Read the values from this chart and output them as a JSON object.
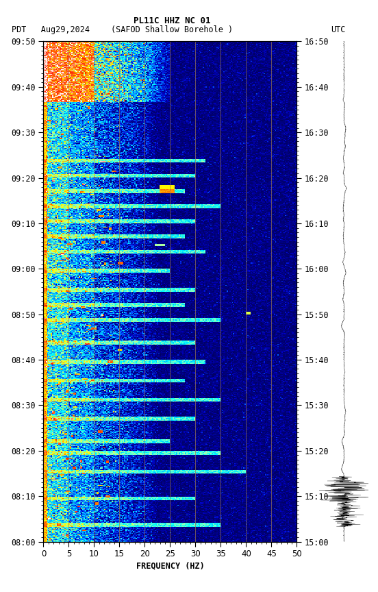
{
  "title_line1": "PL11C HHZ NC 01",
  "title_line2_left": "PDT   Aug29,2024",
  "title_line2_mid": "(SAFOD Shallow Borehole )",
  "title_line2_right": "UTC",
  "xlabel": "FREQUENCY (HZ)",
  "freq_min": 0,
  "freq_max": 50,
  "yticks_pdt": [
    "08:00",
    "08:10",
    "08:20",
    "08:30",
    "08:40",
    "08:50",
    "09:00",
    "09:10",
    "09:20",
    "09:30",
    "09:40",
    "09:50"
  ],
  "yticks_utc": [
    "15:00",
    "15:10",
    "15:20",
    "15:30",
    "15:40",
    "15:50",
    "16:00",
    "16:10",
    "16:20",
    "16:30",
    "16:40",
    "16:50"
  ],
  "xticks": [
    0,
    5,
    10,
    15,
    20,
    25,
    30,
    35,
    40,
    45,
    50
  ],
  "vlines_freq": [
    5,
    10,
    15,
    20,
    25,
    30,
    35,
    40,
    45
  ],
  "fig_bg": "#ffffff",
  "font_color": "#000000",
  "font_size": 8.5,
  "title_font_size": 9,
  "cmap_colors": [
    [
      0.0,
      "#000066"
    ],
    [
      0.1,
      "#0000cc"
    ],
    [
      0.2,
      "#0055ff"
    ],
    [
      0.32,
      "#00aaff"
    ],
    [
      0.44,
      "#00ffff"
    ],
    [
      0.56,
      "#aaffaa"
    ],
    [
      0.66,
      "#ffff00"
    ],
    [
      0.78,
      "#ff8800"
    ],
    [
      0.88,
      "#ff2200"
    ],
    [
      1.0,
      "#ffffff"
    ]
  ]
}
